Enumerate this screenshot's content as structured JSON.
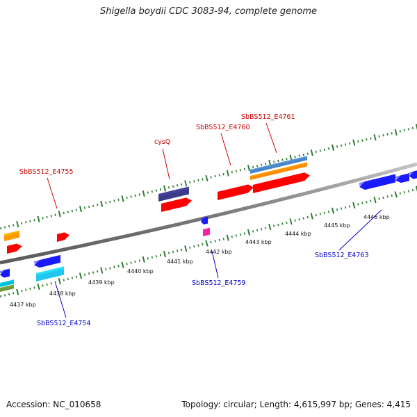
{
  "title": "Shigella boydii CDC 3083-94, complete genome",
  "footer": {
    "accession": "Accession: NC_010658",
    "summary": "Topology: circular; Length: 4,615,997 bp; Genes: 4,415"
  },
  "colors": {
    "forward_label": "#cc0000",
    "reverse_label": "#0000cc",
    "tick_forward": "#2e7d32",
    "tick_reverse": "#2e7d32",
    "backbone": "#8a8a8a"
  },
  "scale_labels": [
    "4437 kbp",
    "4438 kbp",
    "4439 kbp",
    "4440 kbp",
    "4441 kbp",
    "4442 kbp",
    "4443 kbp",
    "4444 kbp",
    "4445 kbp",
    "4446 kbp"
  ],
  "gene_labels": [
    {
      "text": "SbBS512_E4755",
      "strand": "forward"
    },
    {
      "text": "cysQ",
      "strand": "forward"
    },
    {
      "text": "SbBS512_E4760",
      "strand": "forward"
    },
    {
      "text": "SbBS512_E4761",
      "strand": "forward"
    },
    {
      "text": "SbBS512_E4754",
      "strand": "reverse"
    },
    {
      "text": "SbBS512_E4759",
      "strand": "reverse"
    },
    {
      "text": "SbBS512_E4763",
      "strand": "reverse"
    }
  ]
}
